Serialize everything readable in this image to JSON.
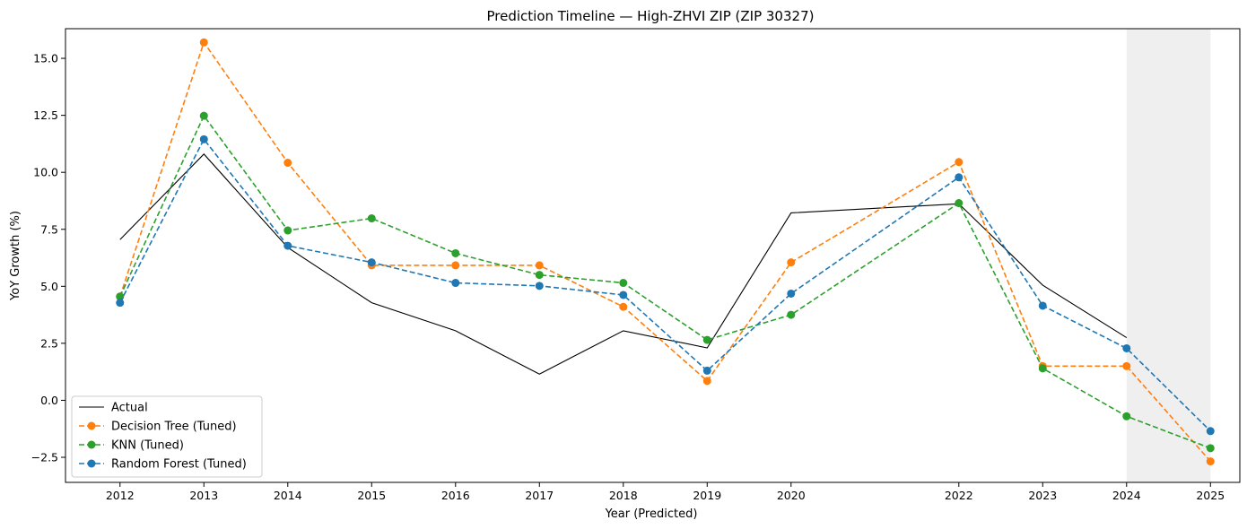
{
  "chart_data": {
    "type": "line",
    "title": "Prediction Timeline — High-ZHVI ZIP (ZIP 30327)",
    "xlabel": "Year (Predicted)",
    "ylabel": "YoY Growth (%)",
    "x_ticks": [
      2012,
      2013,
      2014,
      2015,
      2016,
      2017,
      2018,
      2019,
      2020,
      2022,
      2023,
      2024,
      2025
    ],
    "y_ticks": [
      -2.5,
      0.0,
      2.5,
      5.0,
      7.5,
      10.0,
      12.5,
      15.0
    ],
    "y_tick_labels": [
      "−2.5",
      "0.0",
      "2.5",
      "5.0",
      "7.5",
      "10.0",
      "12.5",
      "15.0"
    ],
    "xlim": [
      2011.35,
      2025.35
    ],
    "ylim": [
      -3.6,
      16.3
    ],
    "shaded_region": [
      2024,
      2025
    ],
    "grid": false,
    "legend_position": "lower-left",
    "series": [
      {
        "name": "Actual",
        "style": "solid",
        "markers": false,
        "color": "#000000",
        "x": [
          2012,
          2013,
          2014,
          2015,
          2016,
          2017,
          2018,
          2019,
          2020,
          2022,
          2023,
          2024
        ],
        "values": [
          7.05,
          10.8,
          6.7,
          4.28,
          3.05,
          1.15,
          3.05,
          2.3,
          8.22,
          8.62,
          5.05,
          2.75
        ]
      },
      {
        "name": "Decision Tree (Tuned)",
        "style": "dashed",
        "markers": true,
        "color": "#ff7f0e",
        "x": [
          2012,
          2013,
          2014,
          2015,
          2016,
          2017,
          2018,
          2019,
          2020,
          2022,
          2023,
          2024,
          2025
        ],
        "values": [
          4.55,
          15.7,
          10.42,
          5.92,
          5.92,
          5.92,
          4.1,
          0.85,
          6.05,
          10.45,
          1.5,
          1.5,
          -2.68
        ]
      },
      {
        "name": "KNN (Tuned)",
        "style": "dashed",
        "markers": true,
        "color": "#2ca02c",
        "x": [
          2012,
          2013,
          2014,
          2015,
          2016,
          2017,
          2018,
          2019,
          2020,
          2022,
          2023,
          2024,
          2025
        ],
        "values": [
          4.55,
          12.48,
          7.45,
          7.98,
          6.45,
          5.5,
          5.15,
          2.65,
          3.75,
          8.65,
          1.4,
          -0.7,
          -2.1
        ]
      },
      {
        "name": "Random Forest (Tuned)",
        "style": "dashed",
        "markers": true,
        "color": "#1f77b4",
        "x": [
          2012,
          2013,
          2014,
          2015,
          2016,
          2017,
          2018,
          2019,
          2020,
          2022,
          2023,
          2024,
          2025
        ],
        "values": [
          4.28,
          11.45,
          6.78,
          6.05,
          5.15,
          5.02,
          4.62,
          1.3,
          4.68,
          9.78,
          4.15,
          2.28,
          -1.35
        ]
      }
    ]
  }
}
